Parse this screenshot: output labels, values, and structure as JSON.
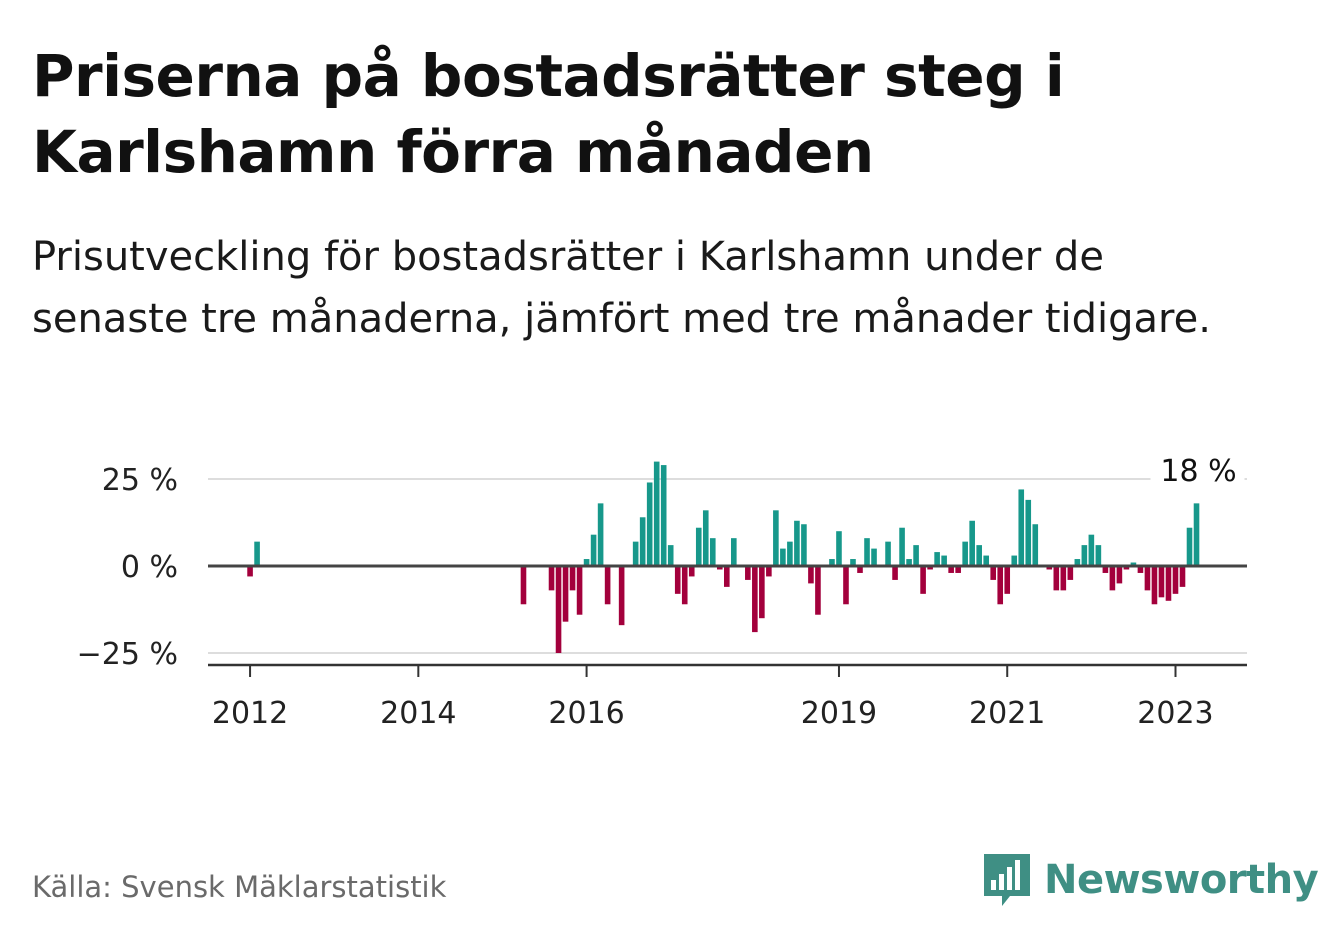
{
  "header": {
    "title": "Priserna på bostadsrätter steg i Karlshamn förra månaden",
    "subtitle": "Prisutveckling för bostadsrätter i Karlshamn under de senaste tre månaderna, jämfört med tre månader tidigare."
  },
  "footer": {
    "source": "Källa: Svensk Mäklarstatistik",
    "brand": "Newsworthy"
  },
  "colors": {
    "positive": "#17988b",
    "negative": "#a3003c",
    "axis": "#444444",
    "grid": "#dddddd",
    "brand": "#3f8f84"
  },
  "chart_data": {
    "type": "bar",
    "title": "",
    "xlabel": "",
    "ylabel": "",
    "ylim": [
      -28,
      28
    ],
    "y_ticks": [
      {
        "value": 25,
        "label": "25 %"
      },
      {
        "value": 0,
        "label": "0 %"
      },
      {
        "value": -25,
        "label": "−25 %"
      }
    ],
    "x_ticks": [
      {
        "value": 2012.0,
        "label": "2012"
      },
      {
        "value": 2014.0,
        "label": "2014"
      },
      {
        "value": 2016.0,
        "label": "2016"
      },
      {
        "value": 2019.0,
        "label": "2019"
      },
      {
        "value": 2021.0,
        "label": "2021"
      },
      {
        "value": 2023.0,
        "label": "2023"
      }
    ],
    "xlim": [
      2011.5,
      2023.85
    ],
    "grid": true,
    "last_value_label": "18 %",
    "series": [
      {
        "values": [
          {
            "date": "2012-01",
            "value": -3
          },
          {
            "date": "2012-02",
            "value": 7
          },
          {
            "date": "2015-04",
            "value": -11
          },
          {
            "date": "2015-08",
            "value": -7
          },
          {
            "date": "2015-09",
            "value": -25
          },
          {
            "date": "2015-10",
            "value": -16
          },
          {
            "date": "2015-11",
            "value": -7
          },
          {
            "date": "2015-12",
            "value": -14
          },
          {
            "date": "2016-01",
            "value": 2
          },
          {
            "date": "2016-02",
            "value": 9
          },
          {
            "date": "2016-03",
            "value": 18
          },
          {
            "date": "2016-04",
            "value": -11
          },
          {
            "date": "2016-06",
            "value": -17
          },
          {
            "date": "2016-08",
            "value": 7
          },
          {
            "date": "2016-09",
            "value": 14
          },
          {
            "date": "2016-10",
            "value": 24
          },
          {
            "date": "2016-11",
            "value": 30
          },
          {
            "date": "2016-12",
            "value": 29
          },
          {
            "date": "2017-01",
            "value": 6
          },
          {
            "date": "2017-02",
            "value": -8
          },
          {
            "date": "2017-03",
            "value": -11
          },
          {
            "date": "2017-04",
            "value": -3
          },
          {
            "date": "2017-05",
            "value": 11
          },
          {
            "date": "2017-06",
            "value": 16
          },
          {
            "date": "2017-07",
            "value": 8
          },
          {
            "date": "2017-08",
            "value": -1
          },
          {
            "date": "2017-09",
            "value": -6
          },
          {
            "date": "2017-10",
            "value": 8
          },
          {
            "date": "2017-12",
            "value": -4
          },
          {
            "date": "2018-01",
            "value": -19
          },
          {
            "date": "2018-02",
            "value": -15
          },
          {
            "date": "2018-03",
            "value": -3
          },
          {
            "date": "2018-04",
            "value": 16
          },
          {
            "date": "2018-05",
            "value": 5
          },
          {
            "date": "2018-06",
            "value": 7
          },
          {
            "date": "2018-07",
            "value": 13
          },
          {
            "date": "2018-08",
            "value": 12
          },
          {
            "date": "2018-09",
            "value": -5
          },
          {
            "date": "2018-10",
            "value": -14
          },
          {
            "date": "2018-12",
            "value": 2
          },
          {
            "date": "2019-01",
            "value": 10
          },
          {
            "date": "2019-02",
            "value": -11
          },
          {
            "date": "2019-03",
            "value": 2
          },
          {
            "date": "2019-04",
            "value": -2
          },
          {
            "date": "2019-05",
            "value": 8
          },
          {
            "date": "2019-06",
            "value": 5
          },
          {
            "date": "2019-08",
            "value": 7
          },
          {
            "date": "2019-09",
            "value": -4
          },
          {
            "date": "2019-10",
            "value": 11
          },
          {
            "date": "2019-11",
            "value": 2
          },
          {
            "date": "2019-12",
            "value": 6
          },
          {
            "date": "2020-01",
            "value": -8
          },
          {
            "date": "2020-02",
            "value": -1
          },
          {
            "date": "2020-03",
            "value": 4
          },
          {
            "date": "2020-04",
            "value": 3
          },
          {
            "date": "2020-05",
            "value": -2
          },
          {
            "date": "2020-06",
            "value": -2
          },
          {
            "date": "2020-07",
            "value": 7
          },
          {
            "date": "2020-08",
            "value": 13
          },
          {
            "date": "2020-09",
            "value": 6
          },
          {
            "date": "2020-10",
            "value": 3
          },
          {
            "date": "2020-11",
            "value": -4
          },
          {
            "date": "2020-12",
            "value": -11
          },
          {
            "date": "2021-01",
            "value": -8
          },
          {
            "date": "2021-02",
            "value": 3
          },
          {
            "date": "2021-03",
            "value": 22
          },
          {
            "date": "2021-04",
            "value": 19
          },
          {
            "date": "2021-05",
            "value": 12
          },
          {
            "date": "2021-07",
            "value": -1
          },
          {
            "date": "2021-08",
            "value": -7
          },
          {
            "date": "2021-09",
            "value": -7
          },
          {
            "date": "2021-10",
            "value": -4
          },
          {
            "date": "2021-11",
            "value": 2
          },
          {
            "date": "2021-12",
            "value": 6
          },
          {
            "date": "2022-01",
            "value": 9
          },
          {
            "date": "2022-02",
            "value": 6
          },
          {
            "date": "2022-03",
            "value": -2
          },
          {
            "date": "2022-04",
            "value": -7
          },
          {
            "date": "2022-05",
            "value": -5
          },
          {
            "date": "2022-06",
            "value": -1
          },
          {
            "date": "2022-07",
            "value": 1
          },
          {
            "date": "2022-08",
            "value": -2
          },
          {
            "date": "2022-09",
            "value": -7
          },
          {
            "date": "2022-10",
            "value": -11
          },
          {
            "date": "2022-11",
            "value": -9
          },
          {
            "date": "2022-12",
            "value": -10
          },
          {
            "date": "2023-01",
            "value": -8
          },
          {
            "date": "2023-02",
            "value": -6
          },
          {
            "date": "2023-03",
            "value": 11
          },
          {
            "date": "2023-04",
            "value": 18
          }
        ]
      }
    ]
  }
}
